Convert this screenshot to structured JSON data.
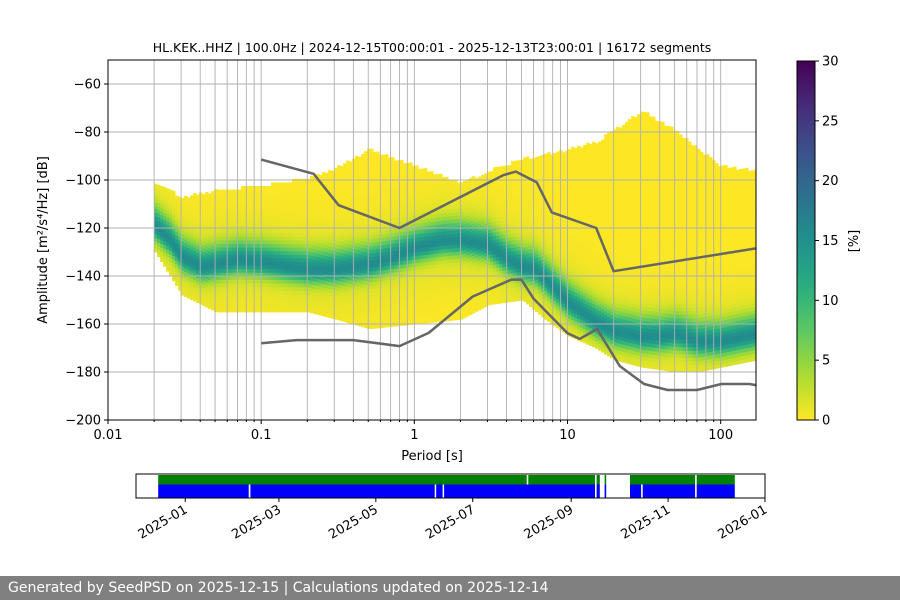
{
  "chart_data": [
    {
      "type": "heatmap",
      "subtype": "probabilistic-power-spectral-density",
      "title": "HL.KEK..HHZ | 100.0Hz | 2024-12-15T00:00:01 - 2025-12-13T23:00:01 | 16172 segments",
      "xlabel": "Period [s]",
      "ylabel": "Amplitude [m²/s⁴/Hz] [dB]",
      "x_scale": "log",
      "xlim": [
        0.01,
        170
      ],
      "ylim": [
        -200,
        -50
      ],
      "x_ticks": [
        {
          "value": 0.01,
          "label": "0.01"
        },
        {
          "value": 0.1,
          "label": "0.1"
        },
        {
          "value": 1,
          "label": "1"
        },
        {
          "value": 10,
          "label": "10"
        },
        {
          "value": 100,
          "label": "100"
        }
      ],
      "y_ticks": [
        -60,
        -80,
        -100,
        -120,
        -140,
        -160,
        -180,
        -200
      ],
      "grid": true,
      "colorbar": {
        "label": "[%]",
        "min": 0,
        "max": 30,
        "ticks": [
          0,
          5,
          10,
          15,
          20,
          25,
          30
        ],
        "colormap": "viridis_r"
      },
      "density_extent": {
        "period": [
          0.02,
          0.03,
          0.05,
          0.1,
          0.2,
          0.3,
          0.5,
          1,
          2,
          3,
          5,
          7,
          10,
          15,
          20,
          30,
          50,
          70,
          100,
          170
        ],
        "upper_db": [
          -102,
          -108,
          -105,
          -103,
          -100,
          -96,
          -88,
          -95,
          -102,
          -97,
          -92,
          -90,
          -88,
          -85,
          -80,
          -72,
          -80,
          -88,
          -95,
          -97
        ],
        "lower_db": [
          -130,
          -148,
          -155,
          -155,
          -155,
          -158,
          -162,
          -160,
          -158,
          -152,
          -150,
          -158,
          -165,
          -170,
          -175,
          -178,
          -180,
          -180,
          -178,
          -175
        ]
      },
      "mode_curve": {
        "period": [
          0.02,
          0.025,
          0.03,
          0.04,
          0.05,
          0.07,
          0.1,
          0.15,
          0.2,
          0.3,
          0.5,
          0.7,
          1,
          1.5,
          2,
          3,
          4,
          5,
          6,
          7,
          10,
          15,
          20,
          30,
          40,
          50,
          70,
          100,
          170
        ],
        "db": [
          -120,
          -126,
          -133,
          -137,
          -136,
          -134,
          -135,
          -137,
          -138,
          -138,
          -136,
          -133,
          -129,
          -126,
          -126,
          -128,
          -134,
          -137,
          -138,
          -142,
          -152,
          -160,
          -164,
          -166,
          -166,
          -165,
          -168,
          -168,
          -165
        ]
      },
      "series": [
        {
          "role": "upper-noise-model",
          "color": "#666666",
          "period": [
            0.1,
            0.22,
            0.32,
            0.8,
            3.8,
            4.6,
            6.3,
            7.9,
            15.4,
            20,
            170
          ],
          "db": [
            -91.5,
            -97.4,
            -110.5,
            -120,
            -98,
            -96.5,
            -101,
            -113.5,
            -120,
            -138,
            -128.5
          ]
        },
        {
          "role": "lower-noise-model",
          "color": "#666666",
          "period": [
            0.1,
            0.17,
            0.4,
            0.8,
            1.24,
            2.4,
            4.3,
            5,
            6,
            10,
            12,
            15.6,
            21.9,
            31.6,
            45,
            70,
            101,
            154,
            170
          ],
          "db": [
            -168,
            -166.7,
            -166.7,
            -169.2,
            -163.7,
            -148.6,
            -141.5,
            -141.5,
            -149.4,
            -163.8,
            -166.2,
            -162.1,
            -177.5,
            -185,
            -187.5,
            -187.5,
            -185,
            -185,
            -185.5
          ]
        }
      ]
    },
    {
      "type": "timeline",
      "xlim": [
        "2024-12-01",
        "2026-01-01"
      ],
      "x_ticks": [
        "2025-01",
        "2025-03",
        "2025-05",
        "2025-07",
        "2025-09",
        "2025-11",
        "2026-01"
      ],
      "rows": [
        {
          "role": "data-available",
          "color": "#008000",
          "intervals": [
            [
              "2024-12-15",
              "2025-08-04"
            ],
            [
              "2025-08-05",
              "2025-09-16"
            ],
            [
              "2025-09-17",
              "2025-09-19"
            ],
            [
              "2025-09-22",
              "2025-09-23"
            ],
            [
              "2025-10-08",
              "2025-11-18"
            ],
            [
              "2025-11-19",
              "2025-12-13"
            ]
          ]
        },
        {
          "role": "psd-computed",
          "color": "#0000ff",
          "intervals": [
            [
              "2024-12-15",
              "2025-02-10"
            ],
            [
              "2025-02-11",
              "2025-06-07"
            ],
            [
              "2025-06-08",
              "2025-06-12"
            ],
            [
              "2025-06-13",
              "2025-09-16"
            ],
            [
              "2025-09-17",
              "2025-09-19"
            ],
            [
              "2025-09-22",
              "2025-09-23"
            ],
            [
              "2025-10-08",
              "2025-10-15"
            ],
            [
              "2025-10-16",
              "2025-11-18"
            ],
            [
              "2025-11-19",
              "2025-12-13"
            ]
          ]
        }
      ]
    }
  ],
  "footer": {
    "text": "Generated by SeedPSD on 2025-12-15 | Calculations updated on 2025-12-14"
  }
}
